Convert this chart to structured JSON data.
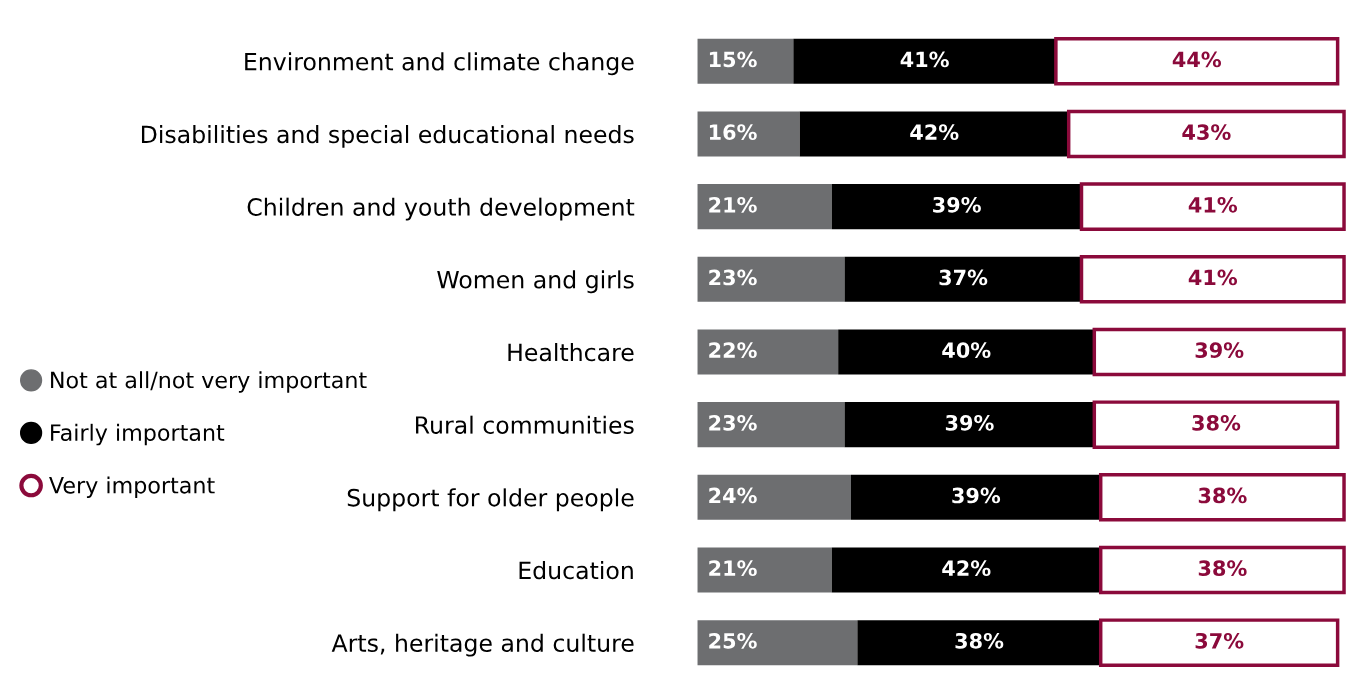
{
  "chart_data": {
    "type": "bar",
    "orientation": "horizontal",
    "stacked": true,
    "legend": "left",
    "grid": false,
    "categories": [
      "Environment and climate change",
      "Disabilities and special educational needs",
      "Children and youth development",
      "Women and girls",
      "Healthcare",
      "Rural communities",
      "Support for older people",
      "Education",
      "Arts, heritage and culture"
    ],
    "series": [
      {
        "name": "Not at all/not very important",
        "color": "#6d6e70",
        "values": [
          15,
          16,
          21,
          23,
          22,
          23,
          24,
          21,
          25
        ],
        "value_labels": [
          "15%",
          "16%",
          "21%",
          "23%",
          "22%",
          "23%",
          "24%",
          "21%",
          "25%"
        ]
      },
      {
        "name": "Fairly important",
        "color": "#000000",
        "values": [
          41,
          42,
          39,
          37,
          40,
          39,
          39,
          42,
          38
        ],
        "value_labels": [
          "41%",
          "42%",
          "39%",
          "37%",
          "40%",
          "39%",
          "39%",
          "42%",
          "38%"
        ]
      },
      {
        "name": "Very important",
        "color": "#8b0a3b",
        "values": [
          44,
          43,
          41,
          41,
          39,
          38,
          38,
          38,
          37
        ],
        "value_labels": [
          "44%",
          "43%",
          "41%",
          "41%",
          "39%",
          "38%",
          "38%",
          "38%",
          "37%"
        ]
      }
    ]
  }
}
